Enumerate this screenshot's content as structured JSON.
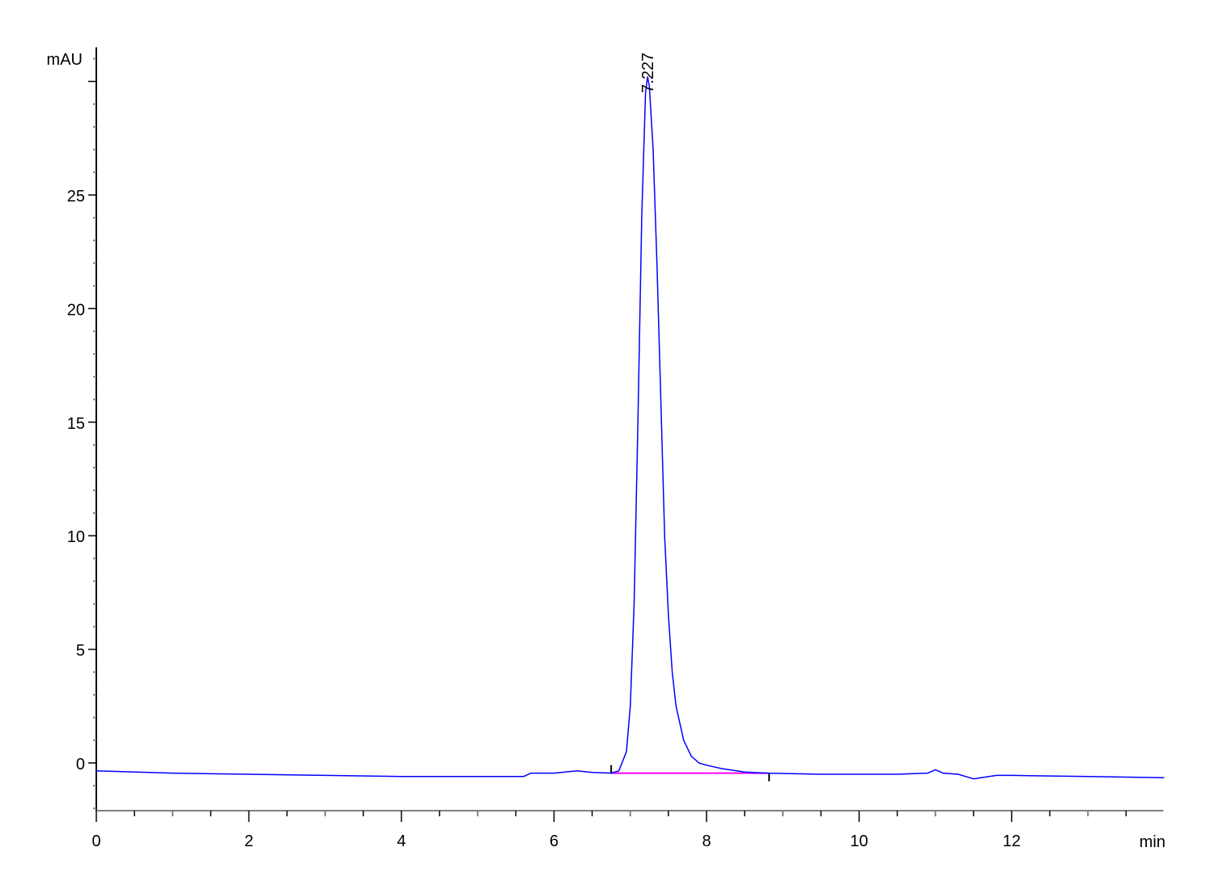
{
  "chart_data": {
    "type": "line",
    "title": "",
    "xlabel": "min",
    "ylabel": "mAU",
    "xlim": [
      0,
      14
    ],
    "ylim": [
      -2.1,
      31.5
    ],
    "x_ticks": [
      0,
      2,
      4,
      6,
      8,
      10,
      12
    ],
    "x_tick_labels": [
      "0",
      "2",
      "4",
      "6",
      "8",
      "10",
      "12"
    ],
    "y_ticks": [
      0,
      5,
      10,
      15,
      20,
      25,
      30
    ],
    "y_tick_labels": [
      "0",
      "5",
      "10",
      "15",
      "20",
      "25",
      ""
    ],
    "grid": false,
    "series": [
      {
        "color": "#0000ff",
        "x": [
          0,
          1,
          2,
          3,
          4,
          5,
          5.6,
          5.7,
          6,
          6.3,
          6.5,
          6.75,
          6.85,
          6.95,
          7.0,
          7.05,
          7.1,
          7.15,
          7.2,
          7.227,
          7.25,
          7.3,
          7.35,
          7.4,
          7.45,
          7.5,
          7.55,
          7.6,
          7.7,
          7.8,
          7.9,
          8.0,
          8.2,
          8.5,
          8.8,
          9.5,
          10,
          10.5,
          10.9,
          11.0,
          11.1,
          11.3,
          11.5,
          11.6,
          11.8,
          12,
          13,
          14
        ],
        "y": [
          -0.35,
          -0.45,
          -0.5,
          -0.55,
          -0.6,
          -0.6,
          -0.6,
          -0.45,
          -0.45,
          -0.35,
          -0.42,
          -0.45,
          -0.35,
          0.5,
          2.5,
          7,
          15,
          24,
          29.5,
          30.2,
          29.8,
          27,
          22,
          16,
          10,
          6.5,
          4,
          2.5,
          1,
          0.3,
          0,
          -0.1,
          -0.25,
          -0.4,
          -0.45,
          -0.5,
          -0.5,
          -0.5,
          -0.45,
          -0.3,
          -0.45,
          -0.5,
          -0.7,
          -0.65,
          -0.55,
          -0.55,
          -0.6,
          -0.65
        ]
      }
    ],
    "integration_baseline": {
      "color": "#ff00ff",
      "x": [
        6.75,
        8.82
      ],
      "y": [
        -0.45,
        -0.45
      ]
    },
    "annotations": [
      {
        "text": "7.227",
        "x": 7.227,
        "y": 30.2
      }
    ]
  }
}
